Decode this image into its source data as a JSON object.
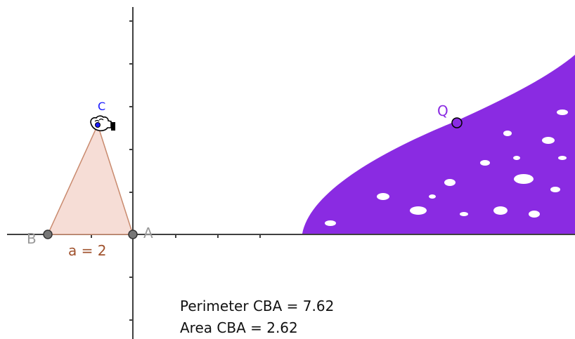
{
  "colors": {
    "axis": "#404040",
    "triangle_fill": "#f6ddd6",
    "triangle_stroke": "#c98a6e",
    "segment_label": "#a0522d",
    "point_gray": "#999999",
    "point_fill": "#777777",
    "label_blue": "#1a1aff",
    "locus": "#8a2be2",
    "text": "#111111"
  },
  "labels": {
    "point_a": "A",
    "point_b": "B",
    "point_c": "C",
    "point_q": "Q",
    "segment_a": "a = 2"
  },
  "measurements": {
    "perimeter": "Perimeter CBA = 7.62",
    "area": "Area CBA = 2.62"
  },
  "icons": {
    "drag_cursor": "hand-grab-icon"
  }
}
